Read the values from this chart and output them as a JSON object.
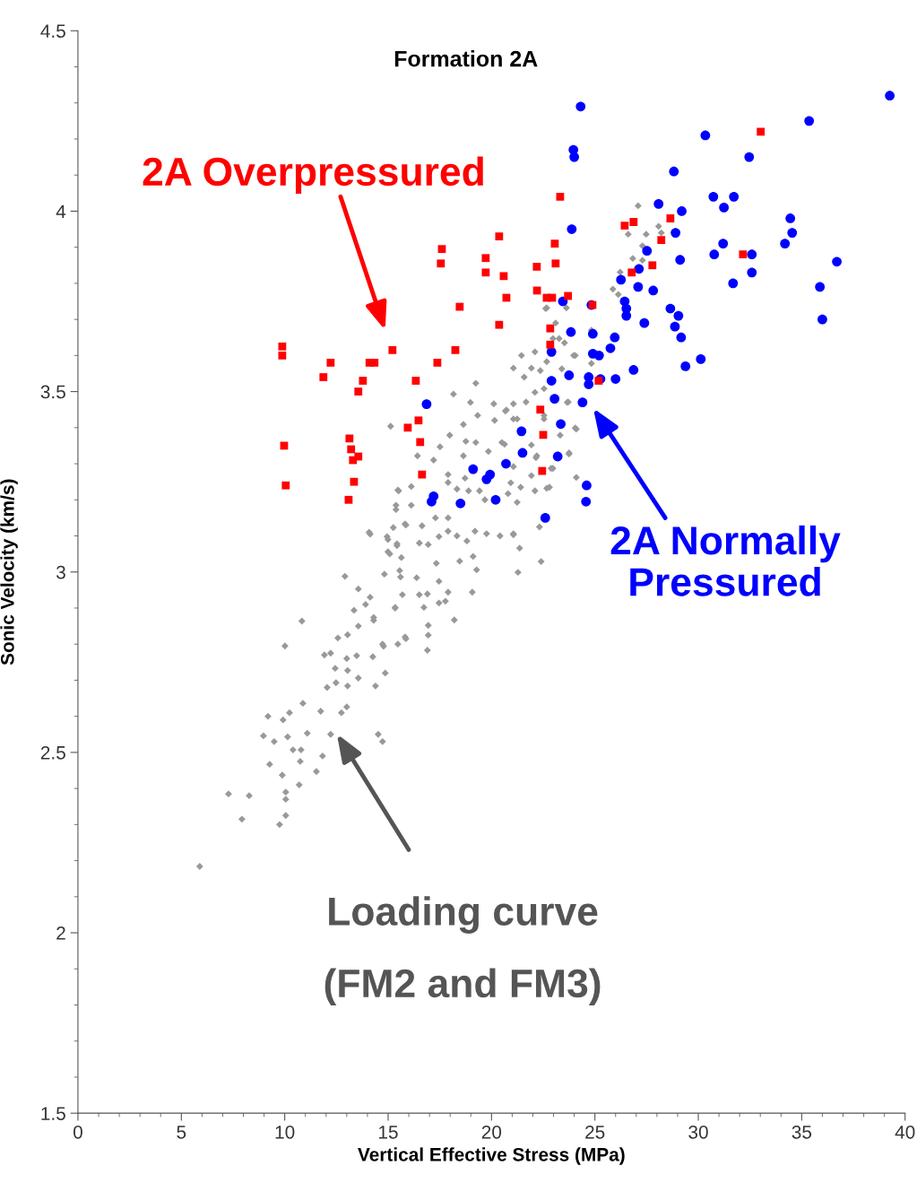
{
  "chart_data": {
    "type": "scatter",
    "title": "Formation 2A",
    "xlabel": "Vertical Effective Stress (MPa)",
    "ylabel": "Sonic Velocity (km/s)",
    "xlim": [
      0,
      40
    ],
    "ylim": [
      1.5,
      4.5
    ],
    "xticks": [
      0,
      5,
      10,
      15,
      20,
      25,
      30,
      35,
      40
    ],
    "yticks": [
      1.5,
      2,
      2.5,
      3,
      3.5,
      4,
      4.5
    ],
    "grid": false,
    "legend": false,
    "annotations": [
      "2A Overpressured",
      "2A Normally\nPressured",
      "Loading curve\n(FM2 and FM3)"
    ],
    "series": [
      {
        "color": "#ff0000",
        "marker": "square",
        "x": [
          9.88,
          9.88,
          12.22,
          11.87,
          13.78,
          13.56,
          14.1,
          14.34,
          15.21,
          9.97,
          10.05,
          13.13,
          13.21,
          13.3,
          13.56,
          13.35,
          13.09,
          16.34,
          17.38,
          18.25,
          16.47,
          15.95,
          16.55,
          16.64,
          17.6,
          17.55,
          18.46,
          19.72,
          19.72,
          20.37,
          20.59,
          20.72,
          20.37,
          22.19,
          23.06,
          23.1,
          22.2,
          22.67,
          22.93,
          23.32,
          23.7,
          22.84,
          22.84,
          22.36,
          22.5,
          22.45,
          24.88,
          25.18,
          26.44,
          26.87,
          26.78,
          27.78,
          28.21,
          28.65,
          32.16,
          33.02
        ],
        "values": [
          3.625,
          3.6,
          3.58,
          3.54,
          3.53,
          3.5,
          3.58,
          3.58,
          3.615,
          3.35,
          3.24,
          3.37,
          3.34,
          3.31,
          3.32,
          3.25,
          3.2,
          3.53,
          3.58,
          3.615,
          3.42,
          3.4,
          3.36,
          3.27,
          3.895,
          3.855,
          3.735,
          3.87,
          3.83,
          3.93,
          3.82,
          3.76,
          3.685,
          3.846,
          3.91,
          3.855,
          3.78,
          3.76,
          3.76,
          4.04,
          3.765,
          3.675,
          3.63,
          3.45,
          3.38,
          3.28,
          3.74,
          3.53,
          3.96,
          3.97,
          3.83,
          3.85,
          3.92,
          3.98,
          3.88,
          4.22
        ]
      },
      {
        "color": "#0000ff",
        "marker": "circle",
        "x": [
          39.26,
          35.36,
          30.34,
          32.46,
          28.82,
          24.31,
          23.96,
          24.0,
          23.88,
          28.08,
          29.2,
          30.73,
          31.24,
          31.72,
          34.45,
          34.54,
          34.19,
          31.2,
          30.77,
          32.59,
          32.59,
          31.68,
          36.7,
          35.88,
          36.0,
          30.12,
          29.38,
          27.52,
          28.9,
          29.12,
          26.26,
          27.13,
          27.09,
          27.82,
          26.44,
          26.52,
          26.52,
          27.39,
          28.65,
          29.04,
          28.87,
          29.17,
          24.4,
          24.6,
          24.57,
          22.6,
          21.5,
          23.2,
          23.35,
          21.45,
          20.7,
          23.05,
          22.9,
          23.75,
          24.7,
          24.7,
          25.27,
          26.0,
          26.87,
          24.9,
          25.2,
          25.75,
          25.96,
          24.9,
          23.84,
          22.9,
          24.83,
          23.45,
          16.86,
          19.11,
          19.93,
          19.76,
          20.2,
          18.5,
          17.2,
          17.1
        ],
        "values": [
          4.32,
          4.25,
          4.21,
          4.15,
          4.11,
          4.29,
          4.17,
          4.15,
          3.95,
          4.02,
          4.0,
          4.04,
          4.01,
          4.04,
          3.98,
          3.94,
          3.91,
          3.91,
          3.88,
          3.88,
          3.83,
          3.8,
          3.86,
          3.79,
          3.7,
          3.59,
          3.57,
          3.89,
          3.94,
          3.865,
          3.81,
          3.84,
          3.79,
          3.78,
          3.75,
          3.73,
          3.71,
          3.69,
          3.73,
          3.71,
          3.68,
          3.65,
          3.47,
          3.24,
          3.195,
          3.15,
          3.33,
          3.32,
          3.41,
          3.39,
          3.3,
          3.48,
          3.53,
          3.545,
          3.54,
          3.52,
          3.535,
          3.535,
          3.56,
          3.605,
          3.6,
          3.62,
          3.65,
          3.66,
          3.665,
          3.61,
          3.74,
          3.75,
          3.465,
          3.285,
          3.27,
          3.257,
          3.2,
          3.19,
          3.21,
          3.195
        ]
      },
      {
        "color": "#999999",
        "marker": "diamond",
        "x": [
          5.89,
          7.28,
          8.28,
          7.93,
          9.75,
          10.05,
          10.05,
          10.05,
          10.7,
          9.88,
          11.53,
          9.27,
          10.75,
          11.83,
          8.97,
          9.49,
          10.14,
          10.4,
          10.79,
          11.09,
          12.22,
          9.19,
          9.92,
          10.23,
          10.88,
          11.74,
          12.74,
          13.0,
          14.52,
          14.73,
          10.01,
          10.83,
          12.05,
          12.48,
          13.04,
          13.56,
          14.39,
          14.86,
          12.44,
          13.04,
          13.0,
          13.48,
          14.26,
          11.92,
          12.22,
          12.57,
          13.04,
          13.56,
          14.3,
          14.78,
          15.47,
          15.86,
          13.35,
          13.91,
          14.13,
          13.56,
          12.91,
          15.34,
          15.69,
          14.82,
          15.56,
          15.08,
          15.64,
          14.13,
          14.99,
          15.43,
          15.25,
          15.82,
          15.38,
          15.51,
          15.12,
          19.24,
          18.16,
          18.98,
          19.33,
          18.64,
          20.11,
          20.15,
          20.67,
          21.06,
          21.06,
          17.98,
          18.76,
          19.24,
          19.85,
          20.5,
          17.51,
          16.42,
          17.2,
          18.64,
          17.9,
          17.9,
          18.72,
          18.33,
          18.89,
          19.42,
          19.68,
          16.12,
          15.47,
          15.38,
          16.12,
          15.86,
          16.64,
          17.29,
          17.9,
          17.9,
          18.33,
          17.46,
          16.94,
          16.51,
          18.81,
          19.2,
          19.76,
          20.41,
          21.06,
          21.36,
          19.11,
          18.46,
          17.33,
          16.38,
          15.6,
          14.99,
          14.08,
          14.95,
          15.43,
          19.28,
          21.28,
          22.4,
          19.07,
          17.9,
          17.46,
          16.9,
          16.51,
          17.46,
          17.77,
          16.73,
          15.34,
          14.3,
          18.2,
          16.94,
          16.94,
          15.82,
          14.73,
          16.9,
          21.67,
          22.1,
          22.54,
          22.19,
          22.97,
          24.1,
          22.8,
          21.93,
          22.32,
          21.06,
          21.45,
          22.1,
          22.97,
          22.67,
          24.05,
          23.66,
          24.1,
          23.75,
          27.09,
          26.61,
          27.48,
          28.08,
          28.21,
          27.3,
          26.83,
          27.3,
          26.22,
          25.87,
          26.13,
          22.62,
          23.62,
          23.1,
          23.27,
          23.53,
          23.97,
          22.67,
          21.93,
          22.36,
          21.58,
          23.4,
          22.54,
          24.83,
          24.83,
          23.71,
          20.72,
          21.24,
          22.54,
          24.05,
          21.93,
          23.32,
          22.15,
          20.63,
          21.06,
          22.88,
          23.75,
          20.93,
          21.41,
          22.1,
          22.67,
          20.8,
          21.24,
          21.06
        ],
        "values": [
          2.184,
          2.385,
          2.38,
          2.315,
          2.3,
          2.325,
          2.37,
          2.39,
          2.41,
          2.437,
          2.447,
          2.467,
          2.475,
          2.49,
          2.546,
          2.53,
          2.543,
          2.507,
          2.507,
          2.553,
          2.55,
          2.6,
          2.59,
          2.61,
          2.636,
          2.614,
          2.61,
          2.626,
          2.55,
          2.53,
          2.795,
          2.864,
          2.68,
          2.693,
          2.684,
          2.706,
          2.684,
          2.72,
          2.733,
          2.727,
          2.76,
          2.768,
          2.765,
          2.77,
          2.775,
          2.817,
          2.826,
          2.85,
          2.866,
          2.794,
          2.8,
          2.815,
          2.894,
          2.91,
          2.93,
          2.953,
          2.988,
          2.9,
          2.937,
          2.994,
          3.004,
          3.05,
          3.04,
          3.105,
          3.09,
          3.073,
          3.123,
          3.133,
          3.173,
          3.225,
          3.404,
          3.523,
          3.493,
          3.47,
          3.434,
          3.409,
          3.466,
          3.42,
          3.446,
          3.466,
          3.424,
          3.379,
          3.362,
          3.359,
          3.334,
          3.359,
          3.347,
          3.322,
          3.31,
          3.322,
          3.27,
          3.248,
          3.26,
          3.23,
          3.225,
          3.225,
          3.2,
          3.237,
          3.227,
          3.185,
          3.185,
          3.13,
          3.128,
          3.15,
          3.15,
          3.113,
          3.1,
          3.098,
          3.076,
          3.08,
          3.086,
          3.113,
          3.106,
          3.1,
          3.106,
          3.066,
          3.043,
          3.03,
          3.024,
          2.984,
          2.986,
          3.056,
          3.11,
          3.098,
          3.078,
          3.006,
          2.999,
          3.029,
          2.944,
          2.944,
          2.974,
          2.939,
          2.937,
          2.914,
          2.919,
          2.902,
          2.902,
          2.874,
          2.867,
          2.852,
          2.825,
          2.82,
          2.8,
          2.783,
          3.471,
          3.498,
          3.424,
          3.322,
          3.287,
          3.262,
          3.235,
          3.267,
          3.125,
          3.565,
          3.6,
          3.61,
          3.647,
          3.732,
          3.6,
          3.47,
          3.396,
          3.33,
          4.015,
          3.936,
          3.936,
          3.958,
          3.94,
          3.904,
          3.869,
          3.864,
          3.831,
          3.784,
          3.769,
          3.73,
          3.732,
          3.69,
          3.647,
          3.635,
          3.6,
          3.583,
          3.565,
          3.558,
          3.54,
          3.563,
          3.508,
          3.67,
          3.578,
          3.471,
          3.449,
          3.424,
          3.434,
          3.399,
          3.352,
          3.379,
          3.317,
          3.354,
          3.292,
          3.287,
          3.327,
          3.247,
          3.235,
          3.225,
          3.232,
          3.217,
          3.193,
          3.103
        ]
      }
    ]
  }
}
